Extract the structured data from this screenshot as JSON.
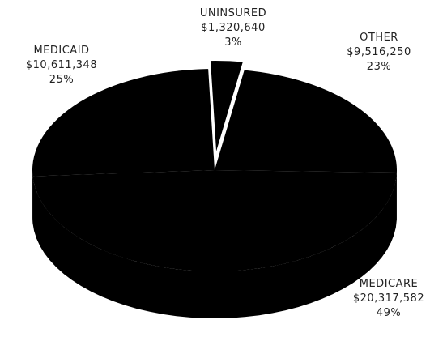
{
  "chart_data": {
    "type": "pie3d",
    "categories": [
      "UNINSURED",
      "OTHER",
      "MEDICARE",
      "MEDICAID"
    ],
    "values": [
      1320640,
      9516250,
      20317582,
      10611348
    ],
    "value_labels": [
      "$1,320,640",
      "$9,516,250",
      "$20,317,582",
      "$10,611,348"
    ],
    "percent_labels": [
      "3%",
      "23%",
      "49%",
      "25%"
    ],
    "color": "#000000"
  }
}
